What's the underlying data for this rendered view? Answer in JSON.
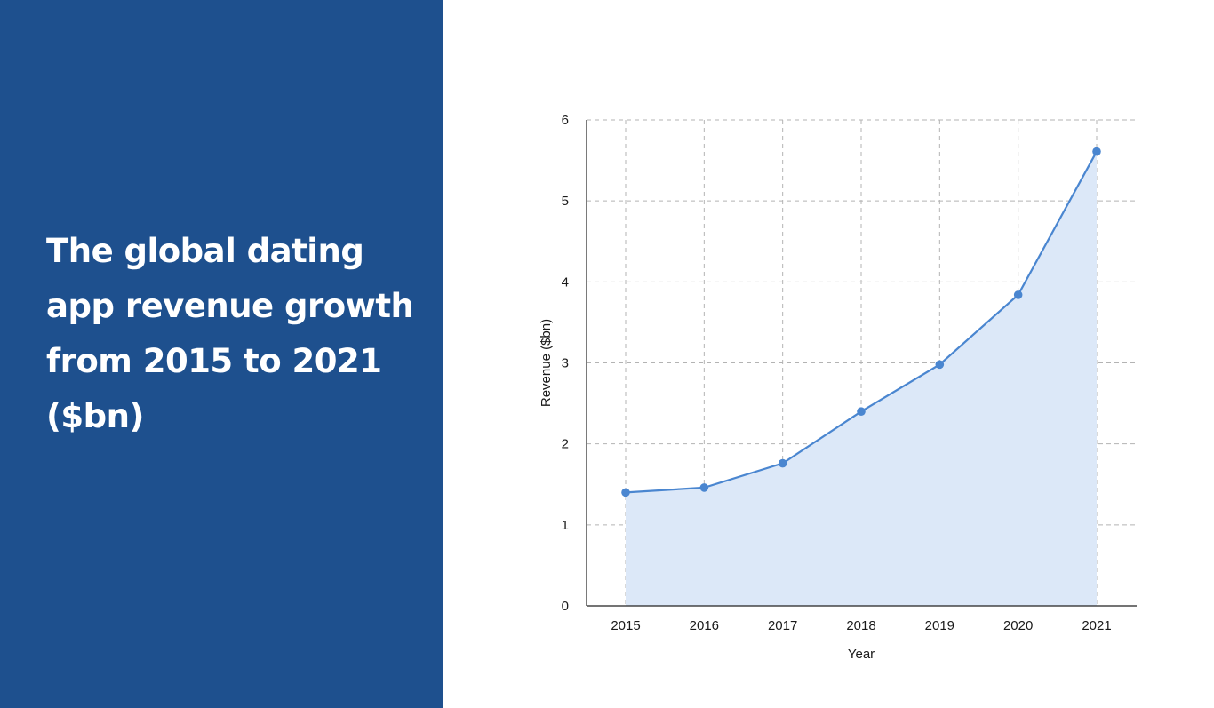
{
  "headline": "The global dating app revenue growth from 2015 to 2021 ($bn)",
  "colors": {
    "panel": "#1e508e",
    "headline_text": "#ffffff",
    "line": "#4a86d0",
    "marker": "#4a86d0",
    "area_fill": "#dce8f8",
    "grid": "#b3b3b3",
    "axis": "#222222"
  },
  "chart_data": {
    "type": "area",
    "title": "",
    "xlabel": "Year",
    "ylabel": "Revenue ($bn)",
    "categories": [
      "2015",
      "2016",
      "2017",
      "2018",
      "2019",
      "2020",
      "2021"
    ],
    "series": [
      {
        "values": [
          1.4,
          1.46,
          1.76,
          2.4,
          2.98,
          3.84,
          5.61
        ]
      }
    ],
    "ylim": [
      0,
      6
    ],
    "yticks": [
      0,
      1,
      2,
      3,
      4,
      5,
      6
    ],
    "grid": true,
    "grid_style": "dashed",
    "markers": true,
    "legend": "none"
  }
}
